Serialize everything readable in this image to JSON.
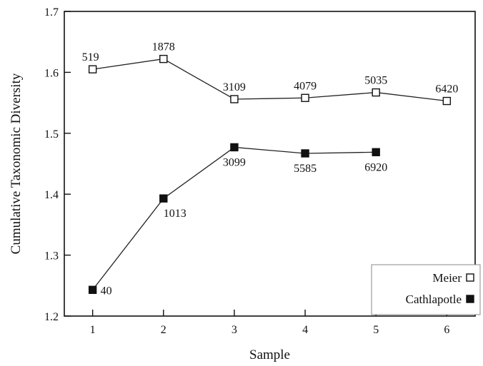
{
  "chart_data": {
    "type": "line",
    "xlabel": "Sample",
    "ylabel": "Cumulative Taxonomic Diversity",
    "xlim": [
      0.6,
      6.4
    ],
    "ylim": [
      1.2,
      1.7
    ],
    "x_ticks": [
      1,
      2,
      3,
      4,
      5,
      6
    ],
    "y_ticks": [
      1.2,
      1.3,
      1.4,
      1.5,
      1.6,
      1.7
    ],
    "y_tick_labels": [
      "1.2",
      "1.3",
      "1.4",
      "1.5",
      "1.6",
      "1.7"
    ],
    "grid": false,
    "legend_position": "bottom-right",
    "series": [
      {
        "name": "Meier",
        "marker": "open-square",
        "x": [
          1,
          2,
          3,
          4,
          5,
          6
        ],
        "y": [
          1.605,
          1.622,
          1.556,
          1.558,
          1.567,
          1.553
        ],
        "point_labels": [
          "519",
          "1878",
          "3109",
          "4079",
          "5035",
          "6420"
        ],
        "label_side": "above"
      },
      {
        "name": "Cathlapotle",
        "marker": "filled-square",
        "x": [
          1,
          2,
          3,
          4,
          5
        ],
        "y": [
          1.243,
          1.393,
          1.477,
          1.467,
          1.469
        ],
        "point_labels": [
          "40",
          "1013",
          "3099",
          "5585",
          "6920"
        ],
        "label_side": "below"
      }
    ]
  }
}
